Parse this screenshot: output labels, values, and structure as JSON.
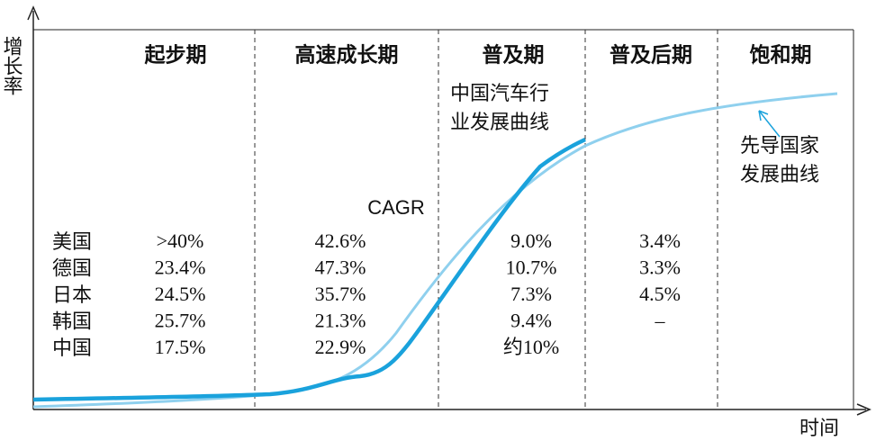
{
  "y_axis_label": "增长率",
  "x_axis_label": "时间",
  "stages": [
    "起步期",
    "高速成长期",
    "普及期",
    "普及后期",
    "饱和期"
  ],
  "china_curve_label": [
    "中国汽车行",
    "业发展曲线"
  ],
  "leader_curve_label": [
    "先导国家",
    "发展曲线"
  ],
  "table": {
    "title": "CAGR",
    "rows": [
      [
        "美国",
        ">40%",
        "42.6%",
        "9.0%",
        "3.4%"
      ],
      [
        "德国",
        "23.4%",
        "47.3%",
        "10.7%",
        "3.3%"
      ],
      [
        "日本",
        "24.5%",
        "35.7%",
        "7.3%",
        "4.5%"
      ],
      [
        "韩国",
        "25.7%",
        "21.3%",
        "9.4%",
        "–"
      ],
      [
        "中国",
        "17.5%",
        "22.9%",
        "约10%"
      ]
    ]
  }
}
